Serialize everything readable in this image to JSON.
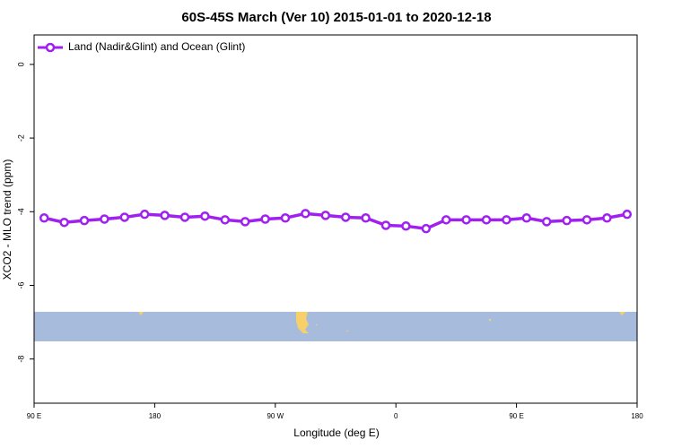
{
  "chart_data": {
    "type": "line",
    "title": "60S-45S March (Ver 10)   2015-01-01 to 2020-12-18",
    "xlabel": "Longitude (deg E)",
    "ylabel": "XCO2 - MLO trend (ppm)",
    "x": [
      97.5,
      112.5,
      127.5,
      142.5,
      157.5,
      172.5,
      187.5,
      202.5,
      217.5,
      232.5,
      247.5,
      262.5,
      277.5,
      292.5,
      307.5,
      322.5,
      337.5,
      352.5,
      367.5,
      382.5,
      397.5,
      412.5,
      427.5,
      442.5,
      457.5,
      472.5,
      487.5,
      502.5,
      517.5,
      532.5
    ],
    "series": [
      {
        "name": "Land (Nadir&Glint) and Ocean (Glint)",
        "color": "#a020f0",
        "values": [
          -4.17,
          -4.29,
          -4.24,
          -4.2,
          -4.15,
          -4.07,
          -4.1,
          -4.15,
          -4.12,
          -4.22,
          -4.27,
          -4.2,
          -4.17,
          -4.05,
          -4.1,
          -4.15,
          -4.17,
          -4.37,
          -4.39,
          -4.46,
          -4.22,
          -4.22,
          -4.22,
          -4.22,
          -4.17,
          -4.27,
          -4.24,
          -4.22,
          -4.17,
          -4.07
        ]
      }
    ],
    "xlim": [
      90,
      540
    ],
    "xticks": [
      {
        "value": 90,
        "label": "90 E"
      },
      180,
      {
        "value": 270,
        "label": "90 W"
      },
      {
        "value": 360,
        "label": "0"
      },
      {
        "value": 450,
        "label": "90 E"
      },
      {
        "value": 540,
        "label": "180"
      }
    ],
    "ylim": [
      -9.2,
      0.8
    ],
    "yticks": [
      0,
      -2,
      -4,
      -6,
      -8
    ],
    "legend": "top-left"
  }
}
